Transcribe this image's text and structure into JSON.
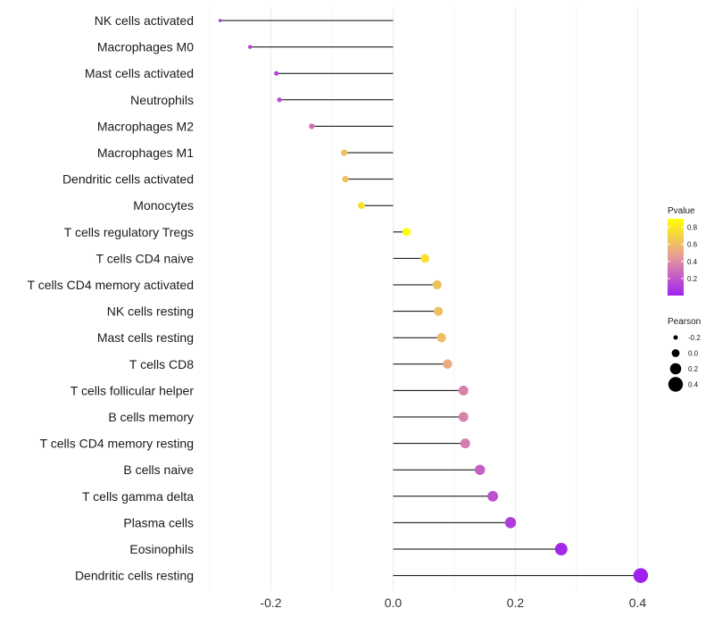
{
  "chart_data": {
    "type": "lollipop",
    "categories": [
      "NK cells activated",
      "Macrophages M0",
      "Mast cells activated",
      "Neutrophils",
      "Macrophages M2",
      "Macrophages M1",
      "Dendritic cells activated",
      "Monocytes",
      "T cells regulatory  Tregs ",
      "T cells CD4 naive",
      "T cells CD4 memory activated",
      "NK cells resting",
      "Mast cells resting",
      "T cells CD8",
      "T cells follicular helper",
      "B cells memory",
      "T cells CD4 memory resting",
      "B cells naive",
      "T cells gamma delta",
      "Plasma cells",
      "Eosinophils",
      "Dendritic cells resting"
    ],
    "values": [
      -0.283,
      -0.234,
      -0.191,
      -0.186,
      -0.133,
      -0.08,
      -0.078,
      -0.052,
      0.022,
      0.052,
      0.072,
      0.074,
      0.079,
      0.089,
      0.115,
      0.115,
      0.118,
      0.142,
      0.163,
      0.192,
      0.275,
      0.405
    ],
    "pvalues": [
      0.04,
      0.1,
      0.15,
      0.16,
      0.3,
      0.62,
      0.62,
      0.77,
      0.88,
      0.76,
      0.63,
      0.62,
      0.6,
      0.52,
      0.36,
      0.36,
      0.34,
      0.24,
      0.18,
      0.1,
      0.03,
      0.001
    ],
    "xlim": [
      -0.3,
      0.43
    ],
    "xticks": [
      -0.2,
      0.0,
      0.2,
      0.4
    ],
    "xtick_labels": [
      "-0.2",
      "0.0",
      "0.2",
      "0.4"
    ],
    "title": "",
    "xlabel": "",
    "ylabel": "",
    "grid": true,
    "legend_position": "right",
    "color_legend": {
      "title": "Pvalue",
      "ticks": [
        0.2,
        0.4,
        0.6,
        0.8
      ],
      "tick_labels": [
        "0.2",
        "0.4",
        "0.6",
        "0.8"
      ],
      "range": [
        0.0,
        0.9
      ],
      "low_color": "#a020f0",
      "mid_color": "#e69a9a",
      "high_color": "#ffff00"
    },
    "size_legend": {
      "title": "Pearson",
      "values": [
        -0.2,
        0.0,
        0.2,
        0.4
      ],
      "labels": [
        "-0.2",
        "0.0",
        "0.2",
        "0.4"
      ]
    }
  }
}
